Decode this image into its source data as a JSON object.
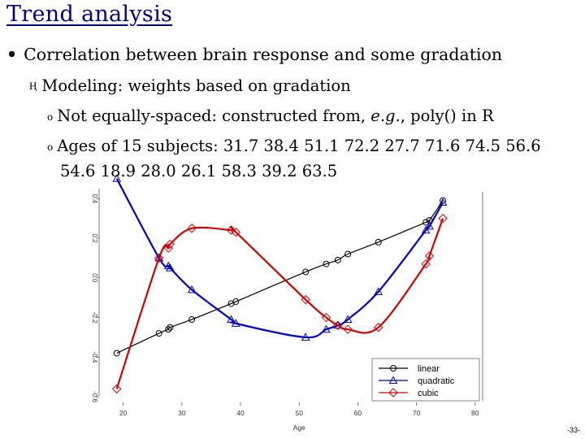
{
  "slide": {
    "title": "Trend analysis",
    "bullet1": "Correlation between brain response and some gradation",
    "bullet2": "Modeling: weights based on gradation",
    "bullet2_marker": "Ⱨ",
    "bullet3_a": "Not equally-spaced: constructed from, ",
    "bullet3_eg": "e.g.",
    "bullet3_b": ", poly() in R",
    "bullet4_line1": "Ages of 15 subjects: 31.7 38.4 51.1 72.2 27.7 71.6 74.5 56.6",
    "bullet4_line2": "54.6 18.9 28.0 26.1 58.3 39.2 63.5",
    "sub_marker": "o",
    "page_number": "-33-"
  },
  "colors": {
    "linear": "#000000",
    "quadratic": "#0000c0",
    "cubic": "#d00000"
  },
  "chart_data": {
    "type": "line",
    "xlabel": "Age",
    "ylabel": "",
    "xlim": [
      17,
      81
    ],
    "ylim": [
      -0.62,
      0.45
    ],
    "xticks": [
      "20",
      "30",
      "40",
      "50",
      "60",
      "70",
      "80"
    ],
    "xtick_values": [
      20,
      30,
      40,
      50,
      60,
      70,
      80
    ],
    "yticks": [
      "-0.6",
      "-0.4",
      "-0.2",
      "0.0",
      "0.2",
      "0.4"
    ],
    "ytick_values": [
      -0.6,
      -0.4,
      -0.2,
      0.0,
      0.2,
      0.4
    ],
    "legend_position": "bottom-right",
    "series": [
      {
        "name": "linear",
        "marker": "circle",
        "x": [
          18.9,
          26.1,
          27.7,
          28.0,
          31.7,
          38.4,
          39.2,
          51.1,
          54.6,
          56.6,
          58.3,
          63.5,
          71.6,
          72.2,
          74.5
        ],
        "y": [
          -0.38,
          -0.28,
          -0.26,
          -0.25,
          -0.21,
          -0.13,
          -0.12,
          0.03,
          0.07,
          0.09,
          0.12,
          0.18,
          0.28,
          0.29,
          0.39
        ]
      },
      {
        "name": "quadratic",
        "marker": "triangle",
        "x": [
          18.9,
          26.1,
          27.7,
          28.0,
          31.7,
          38.4,
          39.2,
          51.1,
          54.6,
          56.6,
          58.3,
          63.5,
          71.6,
          72.2,
          74.5
        ],
        "y": [
          0.5,
          0.1,
          0.06,
          0.05,
          -0.06,
          -0.21,
          -0.23,
          -0.3,
          -0.26,
          -0.24,
          -0.21,
          -0.07,
          0.24,
          0.26,
          0.38
        ]
      },
      {
        "name": "cubic",
        "marker": "diamond",
        "x": [
          18.9,
          26.1,
          27.7,
          28.0,
          31.7,
          38.4,
          39.2,
          51.1,
          54.6,
          56.6,
          58.3,
          63.5,
          71.6,
          72.2,
          74.5
        ],
        "y": [
          -0.56,
          0.1,
          0.15,
          0.17,
          0.25,
          0.24,
          0.23,
          -0.11,
          -0.2,
          -0.24,
          -0.26,
          -0.25,
          0.07,
          0.11,
          0.3
        ]
      }
    ]
  }
}
